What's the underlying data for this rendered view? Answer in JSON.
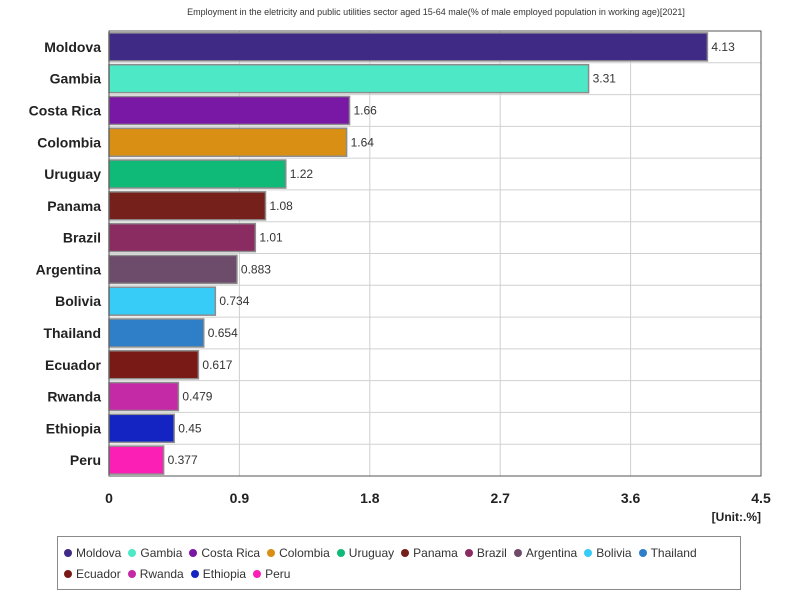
{
  "chart_data": {
    "type": "bar",
    "orientation": "horizontal",
    "title": "Employment in the eletricity and public utilities sector aged 15-64 male(% of male employed population in working age)[2021]",
    "unit_label": "[Unit:.%]",
    "categories": [
      "Moldova",
      "Gambia",
      "Costa Rica",
      "Colombia",
      "Uruguay",
      "Panama",
      "Brazil",
      "Argentina",
      "Bolivia",
      "Thailand",
      "Ecuador",
      "Rwanda",
      "Ethiopia",
      "Peru"
    ],
    "values": [
      4.13,
      3.31,
      1.66,
      1.64,
      1.22,
      1.08,
      1.01,
      0.883,
      0.734,
      0.654,
      0.617,
      0.479,
      0.45,
      0.377
    ],
    "value_labels": [
      "4.13",
      "3.31",
      "1.66",
      "1.64",
      "1.22",
      "1.08",
      "1.01",
      "0.883",
      "0.734",
      "0.654",
      "0.617",
      "0.479",
      "0.45",
      "0.377"
    ],
    "colors": [
      "#3f2a86",
      "#4de8c6",
      "#7a18a6",
      "#d98f14",
      "#0fb978",
      "#75201a",
      "#8a2c62",
      "#6c4c6a",
      "#37ccf7",
      "#2e7fc7",
      "#7a1a16",
      "#c42aa6",
      "#1424c2",
      "#fb1fb6"
    ],
    "x_ticks": [
      "0",
      "0.9",
      "1.8",
      "2.7",
      "3.6",
      "4.5"
    ],
    "xlim": [
      0,
      4.5
    ],
    "grid": true,
    "legend_position": "bottom"
  }
}
